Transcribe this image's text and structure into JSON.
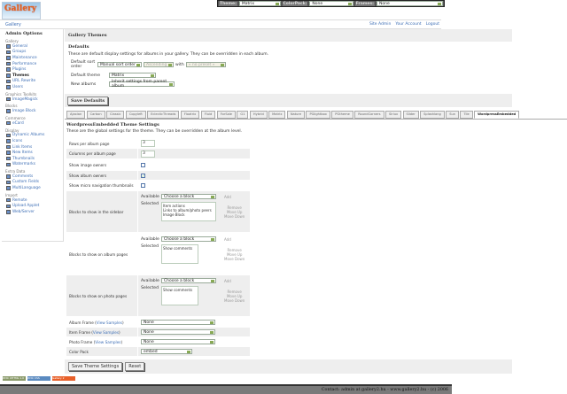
{
  "logo": {
    "text": "Gallery"
  },
  "topbar": {
    "theme_label": "Theme:",
    "theme_value": "Matrix",
    "colorpack_label": "ColorPack:",
    "colorpack_value": "None",
    "frames_label": "Frames:",
    "frames_value": "None"
  },
  "breadcrumb": "Gallery",
  "toplinks": [
    "Site Admin",
    "Your Account",
    "Logout"
  ],
  "sidebar": {
    "title": "Admin Options",
    "groups": [
      {
        "label": "Gallery",
        "items": [
          "General",
          "Groups",
          "Maintenance",
          "Performance",
          "Plugins",
          "Themes",
          "URL Rewrite",
          "Users"
        ]
      },
      {
        "label": "Graphics Toolkits",
        "items": [
          "ImageMagick"
        ]
      },
      {
        "label": "Blocks",
        "items": [
          "Image Block"
        ]
      },
      {
        "label": "Commerce",
        "items": [
          "eCard"
        ]
      },
      {
        "label": "Display",
        "items": [
          "Dynamic Albums",
          "Icons",
          "Link Items",
          "New Items",
          "Thumbnails",
          "Watermarks"
        ]
      },
      {
        "label": "Extra Data",
        "items": [
          "Comments",
          "Custom Fields",
          "MultiLanguage"
        ]
      },
      {
        "label": "Import",
        "items": [
          "Remote",
          "Upload Applet",
          "Web/Server"
        ]
      }
    ]
  },
  "page": {
    "title": "Gallery Themes",
    "defaults_title": "Defaults",
    "defaults_desc": "These are default display settings for albums in your gallery. They can be overridden in each album.",
    "sort_label": "Default sort order",
    "sort_value": "Manual sort order",
    "sort_dir": "Ascending",
    "with_label": "with",
    "with_value": "« no preset »",
    "theme_label": "Default theme",
    "theme_value": "Matrix",
    "new_label": "New albums",
    "new_value": "Inherit settings from parent album",
    "save_defaults": "Save Defaults"
  },
  "tabs": [
    "Ajaxian",
    "Carbon",
    "Classic",
    "Copyleft",
    "EclecticThreads",
    "Floatrix",
    "Fluid",
    "ForSale",
    "G1",
    "Hybrid",
    "Matrix",
    "Nature",
    "PGlightbox",
    "PGtheme",
    "RoundCorners",
    "Siriux",
    "Slider",
    "Splashlang",
    "Sun",
    "Tile",
    "WordpressEmbedded"
  ],
  "active_tab": "WordpressEmbedded",
  "theme": {
    "title": "WordpressEmbedded Theme Settings",
    "desc": "These are the global settings for the theme. They can be overridden at the album level.",
    "rows_label": "Rows per album page",
    "rows_value": "3",
    "cols_label": "Columns per album page",
    "cols_value": "3",
    "img_owners_label": "Show image owners",
    "img_owners": false,
    "album_owners_label": "Show album owners",
    "album_owners": true,
    "micro_label": "Show micro navigation thumbnails",
    "micro": false,
    "available": "Available",
    "selected": "Selected",
    "choose": "Choose a block",
    "add": "Add",
    "remove": "Remove",
    "up": "Move Up",
    "down": "Move Down",
    "sidebar_label": "Blocks to show in the sidebar",
    "sidebar_blocks": "Item actions\nLinks to album/photo peers\nImage Block",
    "album_label": "Blocks to show on album pages",
    "album_blocks": "Show comments",
    "photo_label": "Blocks to show on photo pages",
    "photo_blocks": "Show comments",
    "album_frame": "Album Frame",
    "item_frame": "Item Frame",
    "photo_frame": "Photo Frame",
    "view_samples": "View Samples",
    "none": "None",
    "colorpack_label": "Color Pack",
    "colorpack_value": "embed",
    "save": "Save Theme Settings",
    "reset": "Reset"
  },
  "badges": [
    "W3C XHTML 1.0",
    "W3C CSS",
    "Gallery 2"
  ],
  "footer": "Contact: admin at gallery2.hu - www.gallery2.hu - (c) 2006"
}
